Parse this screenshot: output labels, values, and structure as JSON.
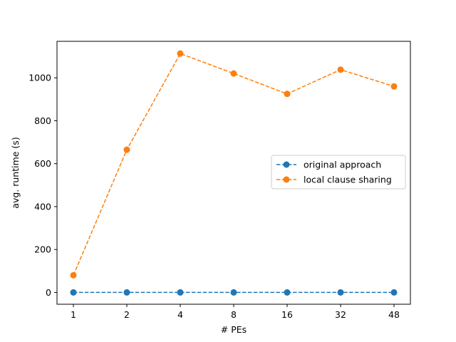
{
  "chart_data": {
    "type": "line",
    "title": "",
    "xlabel": "# PEs",
    "ylabel": "avg. runtime (s)",
    "categories": [
      "1",
      "2",
      "4",
      "8",
      "16",
      "32",
      "48"
    ],
    "ylim": [
      -55,
      1170
    ],
    "yticks": [
      0,
      200,
      400,
      600,
      800,
      1000
    ],
    "grid": false,
    "legend_position": "center-right",
    "series": [
      {
        "name": "original approach",
        "color": "#1f77b4",
        "linestyle": "dashed",
        "marker": "circle",
        "values": [
          0,
          0,
          0,
          0,
          0,
          0,
          0
        ]
      },
      {
        "name": "local clause sharing",
        "color": "#ff7f0e",
        "linestyle": "dashed",
        "marker": "circle",
        "values": [
          80,
          665,
          1113,
          1020,
          925,
          1038,
          960
        ]
      }
    ]
  }
}
